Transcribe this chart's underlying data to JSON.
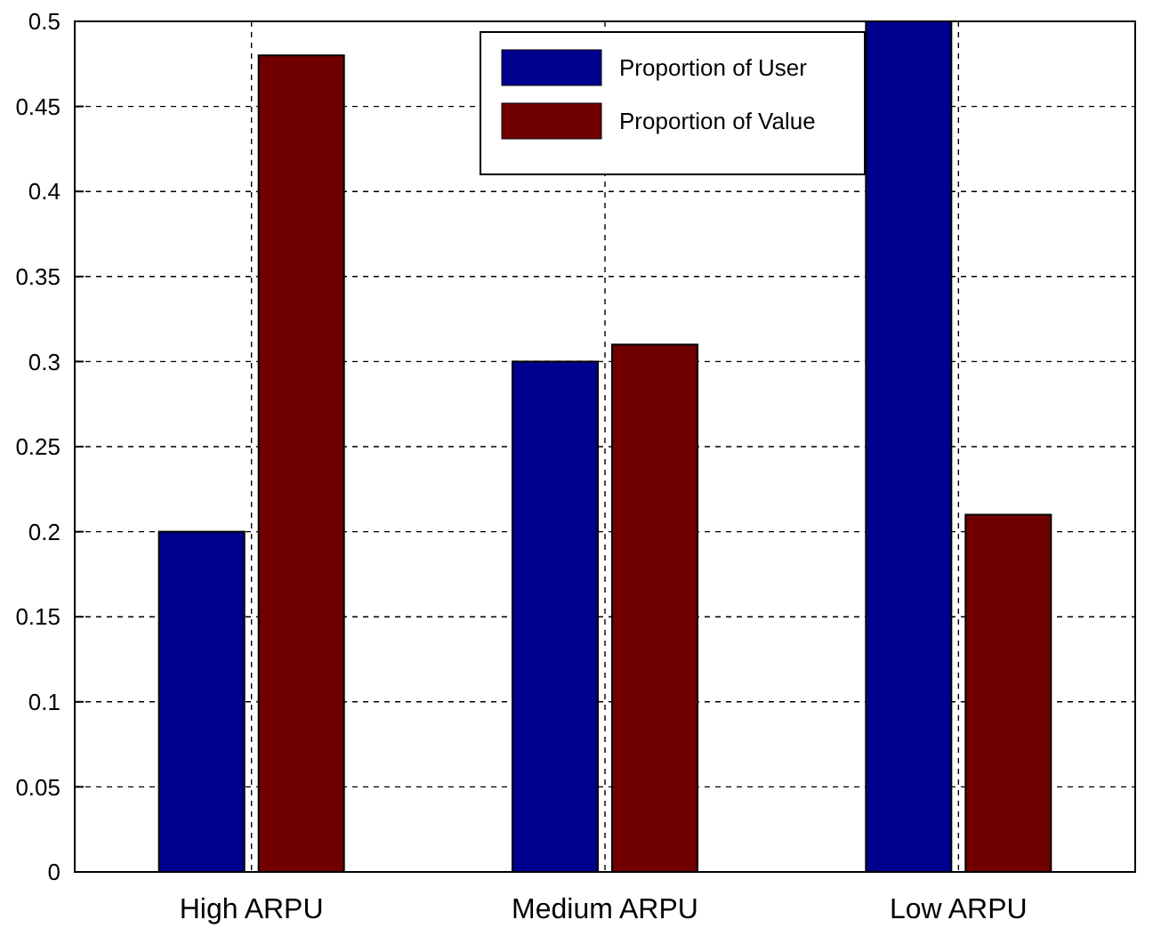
{
  "chart_data": {
    "type": "bar",
    "categories": [
      "High ARPU",
      "Medium ARPU",
      "Low ARPU"
    ],
    "series": [
      {
        "name": "Proportion of User",
        "color": "#00008f",
        "values": [
          0.2,
          0.3,
          0.5
        ]
      },
      {
        "name": "Proportion of Value",
        "color": "#700000",
        "values": [
          0.48,
          0.31,
          0.21
        ]
      }
    ],
    "ylim": [
      0,
      0.5
    ],
    "yticks": [
      0,
      0.05,
      0.1,
      0.15,
      0.2,
      0.25,
      0.3,
      0.35,
      0.4,
      0.45,
      0.5
    ],
    "grid": true,
    "legend": "top"
  }
}
